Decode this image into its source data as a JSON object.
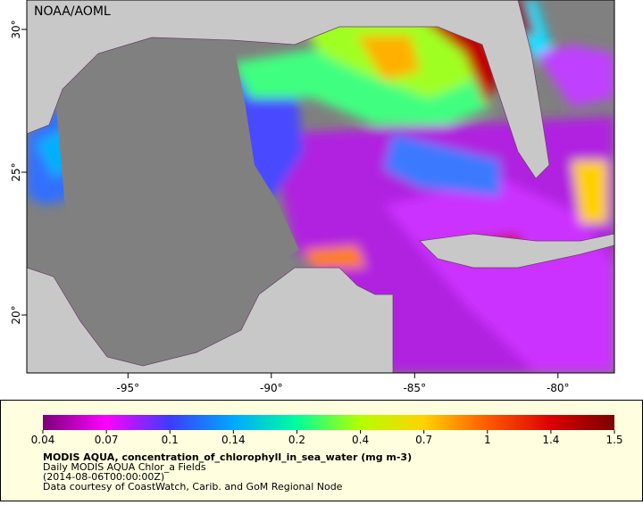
{
  "map": {
    "credit": "NOAA/AOML",
    "xlim": [
      -98.53,
      -78.03
    ],
    "ylim": [
      17.97,
      31.03
    ],
    "xticks": [
      {
        "value": -95,
        "label": "-95°"
      },
      {
        "value": -90,
        "label": "-90°"
      },
      {
        "value": -85,
        "label": "-85°"
      },
      {
        "value": -80,
        "label": "-80°"
      }
    ],
    "yticks": [
      {
        "value": 30,
        "label": "30°"
      },
      {
        "value": 25,
        "label": "25°"
      },
      {
        "value": 20,
        "label": "20°"
      }
    ]
  },
  "colorbar": {
    "ticks": [
      0.04,
      0.07,
      0.1,
      0.14,
      0.2,
      0.4,
      0.7,
      1,
      1.4,
      1.5
    ],
    "colors": [
      "#7a007a",
      "#ff00ff",
      "#3c3cff",
      "#00a8ff",
      "#00ff9c",
      "#b4ff00",
      "#ffd200",
      "#ff5a00",
      "#dc0000",
      "#7a0000"
    ]
  },
  "caption": {
    "title": "MODIS AQUA, concentration_of_chlorophyll_in_sea_water (mg m-3)",
    "line1": "Daily MODIS AQUA Chlor_a Fields",
    "line2": "(2014-08-06T00:00:00Z)",
    "line3": "Data courtesy of CoastWatch, Carib. and GoM Regional Node"
  }
}
